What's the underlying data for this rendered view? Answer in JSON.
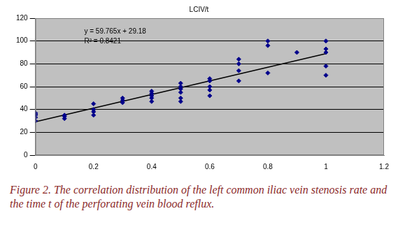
{
  "chart_data": {
    "type": "scatter",
    "title": "LCIV/t",
    "caption": "Figure 2. The correlation distribution of the left common iliac vein stenosis rate and the time t of the perforating vein blood reflux.",
    "x": [
      0,
      0,
      0,
      0,
      0,
      0.1,
      0.1,
      0.1,
      0.2,
      0.2,
      0.2,
      0.2,
      0.3,
      0.3,
      0.3,
      0.4,
      0.4,
      0.4,
      0.4,
      0.4,
      0.5,
      0.5,
      0.5,
      0.5,
      0.5,
      0.5,
      0.6,
      0.6,
      0.6,
      0.6,
      0.6,
      0.7,
      0.7,
      0.7,
      0.7,
      0.8,
      0.8,
      0.8,
      0.9,
      1,
      1,
      1,
      1,
      1
    ],
    "values": [
      30,
      33,
      35,
      36,
      37,
      32,
      34,
      35,
      35,
      38,
      40,
      45,
      46,
      48,
      50,
      47,
      50,
      52,
      54,
      56,
      47,
      50,
      55,
      58,
      60,
      63,
      52,
      57,
      60,
      65,
      67,
      65,
      74,
      80,
      84,
      72,
      96,
      100,
      90,
      70,
      78,
      90,
      93,
      100
    ],
    "color": "#00008b",
    "marker": "rectRot",
    "trendline": {
      "x": [
        0,
        1
      ],
      "values": [
        29.18,
        88.95
      ],
      "color": "#000000"
    },
    "annotations": [
      "y = 59.765x + 29.18",
      "R² = 0.8421"
    ],
    "xlim": [
      0,
      1.2
    ],
    "xticks": [
      0,
      0.2,
      0.4,
      0.6,
      0.8,
      1,
      1.2
    ],
    "ylim": [
      0,
      120
    ],
    "yticks": [
      0,
      20,
      40,
      60,
      80,
      100,
      120
    ],
    "grid": true
  }
}
